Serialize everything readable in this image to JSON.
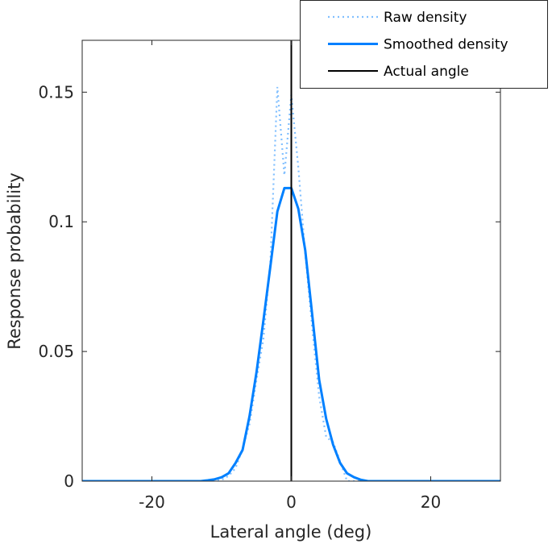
{
  "chart_data": {
    "type": "line",
    "title": "",
    "xlabel": "Lateral angle (deg)",
    "ylabel": "Response probability",
    "xlim": [
      -30,
      30
    ],
    "ylim": [
      0,
      0.17
    ],
    "xticks": [
      -20,
      0,
      20
    ],
    "xtick_labels": [
      "-20",
      "0",
      "20"
    ],
    "yticks": [
      0,
      0.05,
      0.1,
      0.15
    ],
    "ytick_labels": [
      "0",
      "0.05",
      "0.1",
      "0.15"
    ],
    "grid": false,
    "legend_position": "top-right",
    "series": [
      {
        "name": "Raw density",
        "style": "dotted",
        "color": "#80bfff",
        "x": [
          -30,
          -11,
          -10,
          -9,
          -8,
          -7,
          -6,
          -5,
          -4,
          -3,
          -2,
          -1,
          0,
          1,
          2,
          3,
          4,
          5,
          6,
          7,
          8,
          9,
          30
        ],
        "y": [
          0,
          0,
          0.0005,
          0.002,
          0.005,
          0.0125,
          0.022,
          0.039,
          0.055,
          0.085,
          0.152,
          0.118,
          0.149,
          0.121,
          0.0875,
          0.059,
          0.0325,
          0.017,
          0.015,
          0.0075,
          0,
          0,
          0
        ]
      },
      {
        "name": "Smoothed density",
        "style": "solid",
        "color": "#0080ff",
        "x": [
          -30,
          -13,
          -12,
          -11,
          -10,
          -9,
          -8,
          -7,
          -6,
          -5,
          -4,
          -3,
          -2,
          -1,
          0,
          1,
          2,
          3,
          4,
          5,
          6,
          7,
          8,
          9,
          10,
          11,
          30
        ],
        "y": [
          0,
          0,
          0.0003,
          0.0007,
          0.0015,
          0.003,
          0.007,
          0.012,
          0.025,
          0.042,
          0.062,
          0.083,
          0.104,
          0.113,
          0.113,
          0.105,
          0.089,
          0.064,
          0.039,
          0.024,
          0.014,
          0.007,
          0.003,
          0.0015,
          0.0005,
          0,
          0
        ]
      },
      {
        "name": "Actual angle",
        "style": "solid",
        "color": "#000000",
        "x": [
          0,
          0
        ],
        "y": [
          0,
          0.17
        ]
      }
    ]
  }
}
